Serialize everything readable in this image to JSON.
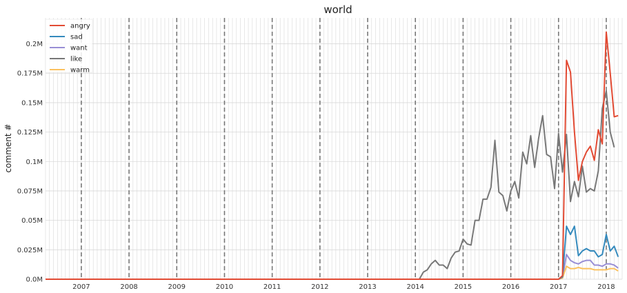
{
  "chart_data": {
    "type": "line",
    "title": "world",
    "xlabel": "",
    "ylabel": "comment #",
    "x_range": [
      "2006-04",
      "2018-05"
    ],
    "ylim": [
      0,
      222000
    ],
    "y_ticks": [
      {
        "value": 0,
        "label": "0.0M"
      },
      {
        "value": 25000,
        "label": "0.025M"
      },
      {
        "value": 50000,
        "label": "0.05M"
      },
      {
        "value": 75000,
        "label": "0.075M"
      },
      {
        "value": 100000,
        "label": "0.1M"
      },
      {
        "value": 125000,
        "label": "0.125M"
      },
      {
        "value": 150000,
        "label": "0.15M"
      },
      {
        "value": 175000,
        "label": "0.175M"
      },
      {
        "value": 200000,
        "label": "0.2M"
      }
    ],
    "x_ticks": [
      "2007",
      "2008",
      "2009",
      "2010",
      "2011",
      "2012",
      "2013",
      "2014",
      "2015",
      "2016",
      "2017",
      "2018"
    ],
    "year_markers": "dashed vertical line at each year start",
    "grid": "on, monthly vertical gridlines",
    "legend_position": "top-left",
    "colors": {
      "angry": "#E24A33",
      "sad": "#348ABD",
      "want": "#988ED5",
      "like": "#777777",
      "warm": "#FBC15E",
      "year_marker": "#777777",
      "grid": "#d8d8d8"
    },
    "series": [
      {
        "name": "angry",
        "points": [
          [
            "2006-04",
            0
          ],
          [
            "2017-01",
            0
          ],
          [
            "2017-02",
            3000
          ],
          [
            "2017-03",
            186000
          ],
          [
            "2017-04",
            176000
          ],
          [
            "2017-05",
            125000
          ],
          [
            "2017-06",
            84000
          ],
          [
            "2017-07",
            100000
          ],
          [
            "2017-08",
            108000
          ],
          [
            "2017-09",
            113000
          ],
          [
            "2017-10",
            101000
          ],
          [
            "2017-11",
            127000
          ],
          [
            "2017-12",
            115000
          ],
          [
            "2018-01",
            210000
          ],
          [
            "2018-02",
            175000
          ],
          [
            "2018-03",
            138000
          ],
          [
            "2018-04",
            139000
          ]
        ]
      },
      {
        "name": "sad",
        "points": [
          [
            "2006-04",
            0
          ],
          [
            "2017-01",
            0
          ],
          [
            "2017-02",
            2000
          ],
          [
            "2017-03",
            45000
          ],
          [
            "2017-04",
            38000
          ],
          [
            "2017-05",
            45000
          ],
          [
            "2017-06",
            20000
          ],
          [
            "2017-07",
            24000
          ],
          [
            "2017-08",
            26000
          ],
          [
            "2017-09",
            24000
          ],
          [
            "2017-10",
            24000
          ],
          [
            "2017-11",
            19000
          ],
          [
            "2017-12",
            21000
          ],
          [
            "2018-01",
            38000
          ],
          [
            "2018-02",
            24000
          ],
          [
            "2018-03",
            28000
          ],
          [
            "2018-04",
            19000
          ]
        ]
      },
      {
        "name": "want",
        "points": [
          [
            "2006-04",
            0
          ],
          [
            "2017-01",
            0
          ],
          [
            "2017-02",
            1000
          ],
          [
            "2017-03",
            21000
          ],
          [
            "2017-04",
            16000
          ],
          [
            "2017-05",
            14000
          ],
          [
            "2017-06",
            13000
          ],
          [
            "2017-07",
            15000
          ],
          [
            "2017-08",
            16000
          ],
          [
            "2017-09",
            16000
          ],
          [
            "2017-10",
            12000
          ],
          [
            "2017-11",
            12000
          ],
          [
            "2017-12",
            11000
          ],
          [
            "2018-01",
            13000
          ],
          [
            "2018-02",
            13000
          ],
          [
            "2018-03",
            12000
          ],
          [
            "2018-04",
            9500
          ]
        ]
      },
      {
        "name": "like",
        "points": [
          [
            "2006-04",
            0
          ],
          [
            "2014-02",
            0
          ],
          [
            "2014-03",
            6000
          ],
          [
            "2014-04",
            8000
          ],
          [
            "2014-05",
            13000
          ],
          [
            "2014-06",
            16000
          ],
          [
            "2014-07",
            12000
          ],
          [
            "2014-08",
            12000
          ],
          [
            "2014-09",
            9000
          ],
          [
            "2014-10",
            18000
          ],
          [
            "2014-11",
            23000
          ],
          [
            "2014-12",
            24000
          ],
          [
            "2015-01",
            34000
          ],
          [
            "2015-02",
            30000
          ],
          [
            "2015-03",
            29000
          ],
          [
            "2015-04",
            50000
          ],
          [
            "2015-05",
            50000
          ],
          [
            "2015-06",
            68000
          ],
          [
            "2015-07",
            68000
          ],
          [
            "2015-08",
            78000
          ],
          [
            "2015-09",
            118000
          ],
          [
            "2015-10",
            74000
          ],
          [
            "2015-11",
            71000
          ],
          [
            "2015-12",
            58000
          ],
          [
            "2016-01",
            75000
          ],
          [
            "2016-02",
            83000
          ],
          [
            "2016-03",
            69000
          ],
          [
            "2016-04",
            108000
          ],
          [
            "2016-05",
            98000
          ],
          [
            "2016-06",
            122000
          ],
          [
            "2016-07",
            95000
          ],
          [
            "2016-08",
            120000
          ],
          [
            "2016-09",
            139000
          ],
          [
            "2016-10",
            106000
          ],
          [
            "2016-11",
            104000
          ],
          [
            "2016-12",
            77000
          ],
          [
            "2017-01",
            124000
          ],
          [
            "2017-02",
            91000
          ],
          [
            "2017-03",
            123000
          ],
          [
            "2017-04",
            66000
          ],
          [
            "2017-05",
            83000
          ],
          [
            "2017-06",
            70000
          ],
          [
            "2017-07",
            96000
          ],
          [
            "2017-08",
            74000
          ],
          [
            "2017-09",
            77000
          ],
          [
            "2017-10",
            75000
          ],
          [
            "2017-11",
            92000
          ],
          [
            "2017-12",
            145000
          ],
          [
            "2018-01",
            160000
          ],
          [
            "2018-02",
            125000
          ],
          [
            "2018-03",
            112000
          ]
        ]
      },
      {
        "name": "warm",
        "points": [
          [
            "2006-04",
            0
          ],
          [
            "2017-01",
            0
          ],
          [
            "2017-02",
            1000
          ],
          [
            "2017-03",
            11000
          ],
          [
            "2017-04",
            9000
          ],
          [
            "2017-05",
            9000
          ],
          [
            "2017-06",
            10000
          ],
          [
            "2017-07",
            9000
          ],
          [
            "2017-08",
            9000
          ],
          [
            "2017-09",
            9000
          ],
          [
            "2017-10",
            8000
          ],
          [
            "2017-11",
            8000
          ],
          [
            "2017-12",
            8000
          ],
          [
            "2018-01",
            8000
          ],
          [
            "2018-02",
            9000
          ],
          [
            "2018-03",
            9000
          ],
          [
            "2018-04",
            7000
          ]
        ]
      }
    ]
  }
}
